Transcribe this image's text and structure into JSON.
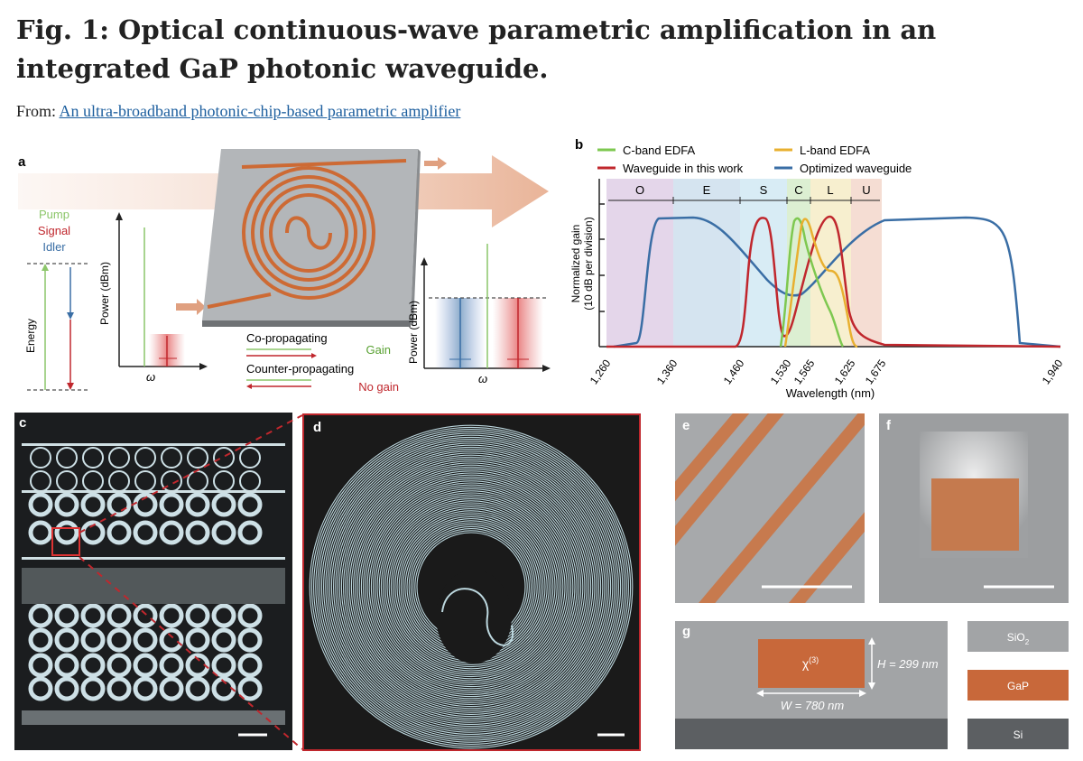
{
  "figure": {
    "title": "Fig. 1: Optical continuous-wave parametric amplification in an integrated GaP photonic waveguide.",
    "from_label": "From:",
    "from_link": "An ultra-broadband photonic-chip-based parametric amplifier"
  },
  "panel_a": {
    "label": "a",
    "pump": "Pump",
    "signal": "Signal",
    "idler": "Idler",
    "energy": "Energy",
    "power_axis_left": "Power (dBm)",
    "power_axis_right": "Power (dBm)",
    "omega_left": "ω",
    "omega_right": "ω",
    "co_propagating": "Co-propagating",
    "counter_propagating": "Counter-propagating",
    "gain": "Gain",
    "no_gain": "No gain"
  },
  "panel_b": {
    "label": "b",
    "legend": [
      "C-band EDFA",
      "L-band EDFA",
      "Waveguide in this work",
      "Optimized waveguide"
    ],
    "ylabel_1": "Normalized gain",
    "ylabel_2": "(10 dB per division)",
    "xlabel": "Wavelength (nm)",
    "bands": [
      "O",
      "E",
      "S",
      "C",
      "L",
      "U"
    ],
    "ticks": [
      "1,260",
      "1,360",
      "1,460",
      "1,530",
      "1,565",
      "1,625",
      "1,675",
      "1,940"
    ]
  },
  "panel_c": {
    "label": "c"
  },
  "panel_d": {
    "label": "d"
  },
  "panel_e": {
    "label": "e"
  },
  "panel_f": {
    "label": "f"
  },
  "panel_g": {
    "label": "g",
    "chi": "χ",
    "chi_sup": "(3)",
    "height": "H = 299 nm",
    "width": "W = 780 nm",
    "legend_sio2": "SiO",
    "legend_sio2_sub": "2",
    "legend_gap": "GaP",
    "legend_si": "Si"
  },
  "colors": {
    "c_band": "#7ec850",
    "l_band": "#e8b030",
    "waveguide": "#c0272d",
    "optimized": "#3a6ea5",
    "gap": "#c8683a"
  }
}
